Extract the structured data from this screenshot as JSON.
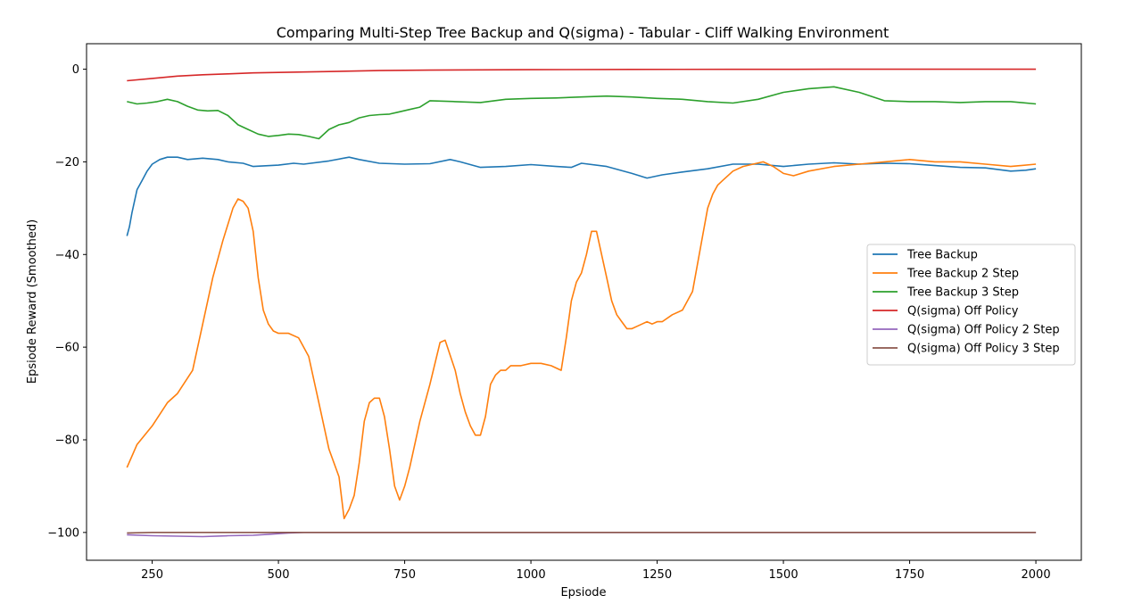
{
  "chart_data": {
    "type": "line",
    "title": "Comparing Multi-Step Tree Backup and Q(sigma) - Tabular - Cliff Walking Environment",
    "xlabel": "Epsiode",
    "ylabel": "Epsiode Reward (Smoothed)",
    "xlim": [
      120,
      2090
    ],
    "ylim": [
      -106,
      5.5
    ],
    "xticks": [
      250,
      500,
      750,
      1000,
      1250,
      1500,
      1750,
      2000
    ],
    "yticks": [
      0,
      -20,
      -40,
      -60,
      -80,
      -100
    ],
    "legend_position": "center-right",
    "grid": false,
    "series": [
      {
        "name": "Tree Backup",
        "color": "#1f77b4",
        "x": [
          200,
          205,
          210,
          220,
          230,
          240,
          250,
          265,
          280,
          300,
          320,
          350,
          380,
          400,
          430,
          450,
          500,
          530,
          550,
          600,
          640,
          660,
          700,
          750,
          800,
          840,
          860,
          900,
          950,
          1000,
          1050,
          1080,
          1100,
          1150,
          1200,
          1230,
          1260,
          1300,
          1350,
          1400,
          1450,
          1500,
          1550,
          1600,
          1650,
          1700,
          1750,
          1800,
          1850,
          1900,
          1950,
          1980,
          2000
        ],
        "y": [
          -36,
          -34,
          -31,
          -26,
          -24,
          -22,
          -20.5,
          -19.5,
          -19,
          -19,
          -19.5,
          -19.2,
          -19.5,
          -20,
          -20.3,
          -21,
          -20.7,
          -20.3,
          -20.5,
          -19.8,
          -19,
          -19.5,
          -20.3,
          -20.5,
          -20.4,
          -19.5,
          -20,
          -21.2,
          -21,
          -20.6,
          -21,
          -21.2,
          -20.3,
          -21,
          -22.5,
          -23.5,
          -22.8,
          -22.2,
          -21.5,
          -20.5,
          -20.5,
          -21,
          -20.5,
          -20.2,
          -20.5,
          -20.3,
          -20.4,
          -20.8,
          -21.2,
          -21.3,
          -22,
          -21.8,
          -21.5
        ]
      },
      {
        "name": "Tree Backup 2 Step",
        "color": "#ff7f0e",
        "x": [
          200,
          220,
          250,
          280,
          300,
          330,
          350,
          370,
          390,
          410,
          420,
          430,
          440,
          450,
          460,
          470,
          480,
          490,
          500,
          520,
          540,
          560,
          580,
          600,
          620,
          630,
          640,
          650,
          660,
          670,
          680,
          690,
          700,
          710,
          720,
          730,
          740,
          750,
          760,
          780,
          800,
          820,
          830,
          850,
          860,
          870,
          880,
          890,
          900,
          910,
          920,
          930,
          940,
          950,
          960,
          980,
          1000,
          1020,
          1040,
          1060,
          1070,
          1080,
          1090,
          1100,
          1110,
          1120,
          1130,
          1140,
          1150,
          1160,
          1170,
          1180,
          1190,
          1200,
          1210,
          1220,
          1230,
          1240,
          1250,
          1260,
          1280,
          1300,
          1320,
          1340,
          1350,
          1360,
          1370,
          1380,
          1400,
          1420,
          1440,
          1460,
          1480,
          1500,
          1520,
          1550,
          1600,
          1650,
          1700,
          1750,
          1800,
          1850,
          1900,
          1950,
          2000
        ],
        "y": [
          -86,
          -81,
          -77,
          -72,
          -70,
          -65,
          -55,
          -45,
          -37,
          -30,
          -28,
          -28.5,
          -30,
          -35,
          -45,
          -52,
          -55,
          -56.5,
          -57,
          -57,
          -58,
          -62,
          -72,
          -82,
          -88,
          -97,
          -95,
          -92,
          -85,
          -76,
          -72,
          -71,
          -71,
          -75,
          -82,
          -90,
          -93,
          -90,
          -86,
          -76,
          -68,
          -59,
          -58.5,
          -65,
          -70,
          -74,
          -77,
          -79,
          -79,
          -75,
          -68,
          -66,
          -65,
          -65,
          -64,
          -64,
          -63.5,
          -63.5,
          -64,
          -65,
          -58,
          -50,
          -46,
          -44,
          -40,
          -35,
          -35,
          -40,
          -45,
          -50,
          -53,
          -54.5,
          -56,
          -56,
          -55.5,
          -55,
          -54.5,
          -55,
          -54.5,
          -54.5,
          -53,
          -52,
          -48,
          -36,
          -30,
          -27,
          -25,
          -24,
          -22,
          -21,
          -20.5,
          -20,
          -21,
          -22.5,
          -23,
          -22,
          -21,
          -20.5,
          -20,
          -19.5,
          -20,
          -20,
          -20.5,
          -21,
          -20.5
        ]
      },
      {
        "name": "Tree Backup 3 Step",
        "color": "#2ca02c",
        "x": [
          200,
          220,
          240,
          260,
          280,
          300,
          320,
          340,
          360,
          380,
          400,
          420,
          440,
          460,
          480,
          500,
          520,
          540,
          560,
          580,
          600,
          620,
          640,
          660,
          680,
          700,
          720,
          740,
          760,
          780,
          800,
          850,
          900,
          950,
          1000,
          1050,
          1100,
          1150,
          1200,
          1250,
          1300,
          1350,
          1400,
          1450,
          1500,
          1550,
          1600,
          1650,
          1700,
          1750,
          1800,
          1850,
          1900,
          1950,
          2000
        ],
        "y": [
          -7,
          -7.5,
          -7.3,
          -7,
          -6.5,
          -7,
          -8,
          -8.8,
          -9,
          -8.9,
          -10,
          -12,
          -13,
          -14,
          -14.5,
          -14.3,
          -14,
          -14.1,
          -14.5,
          -15,
          -13,
          -12,
          -11.5,
          -10.5,
          -10,
          -9.8,
          -9.7,
          -9.2,
          -8.7,
          -8.2,
          -6.8,
          -7,
          -7.2,
          -6.5,
          -6.3,
          -6.2,
          -6,
          -5.8,
          -6,
          -6.3,
          -6.5,
          -7,
          -7.3,
          -6.5,
          -5,
          -4.2,
          -3.8,
          -5,
          -6.8,
          -7,
          -7,
          -7.2,
          -7,
          -7,
          -7.5
        ]
      },
      {
        "name": "Q(sigma) Off Policy",
        "color": "#d62728",
        "x": [
          200,
          250,
          300,
          350,
          400,
          450,
          500,
          600,
          700,
          800,
          900,
          1000,
          1200,
          1400,
          1600,
          1800,
          2000
        ],
        "y": [
          -2.5,
          -2,
          -1.5,
          -1.2,
          -1,
          -0.8,
          -0.7,
          -0.5,
          -0.3,
          -0.2,
          -0.15,
          -0.1,
          -0.05,
          -0.02,
          0,
          0,
          0
        ]
      },
      {
        "name": "Q(sigma) Off Policy 2 Step",
        "color": "#9467bd",
        "x": [
          200,
          250,
          300,
          350,
          400,
          450,
          480,
          520,
          550,
          600,
          800,
          1000,
          1500,
          2000
        ],
        "y": [
          -100.5,
          -100.7,
          -100.8,
          -100.9,
          -100.7,
          -100.6,
          -100.4,
          -100.1,
          -100,
          -100,
          -100,
          -100,
          -100,
          -100
        ]
      },
      {
        "name": "Q(sigma) Off Policy 3 Step",
        "color": "#8c564b",
        "x": [
          200,
          250,
          300,
          400,
          500,
          1000,
          1500,
          2000
        ],
        "y": [
          -100.1,
          -100,
          -100,
          -100,
          -100,
          -100,
          -100,
          -100
        ]
      }
    ]
  }
}
